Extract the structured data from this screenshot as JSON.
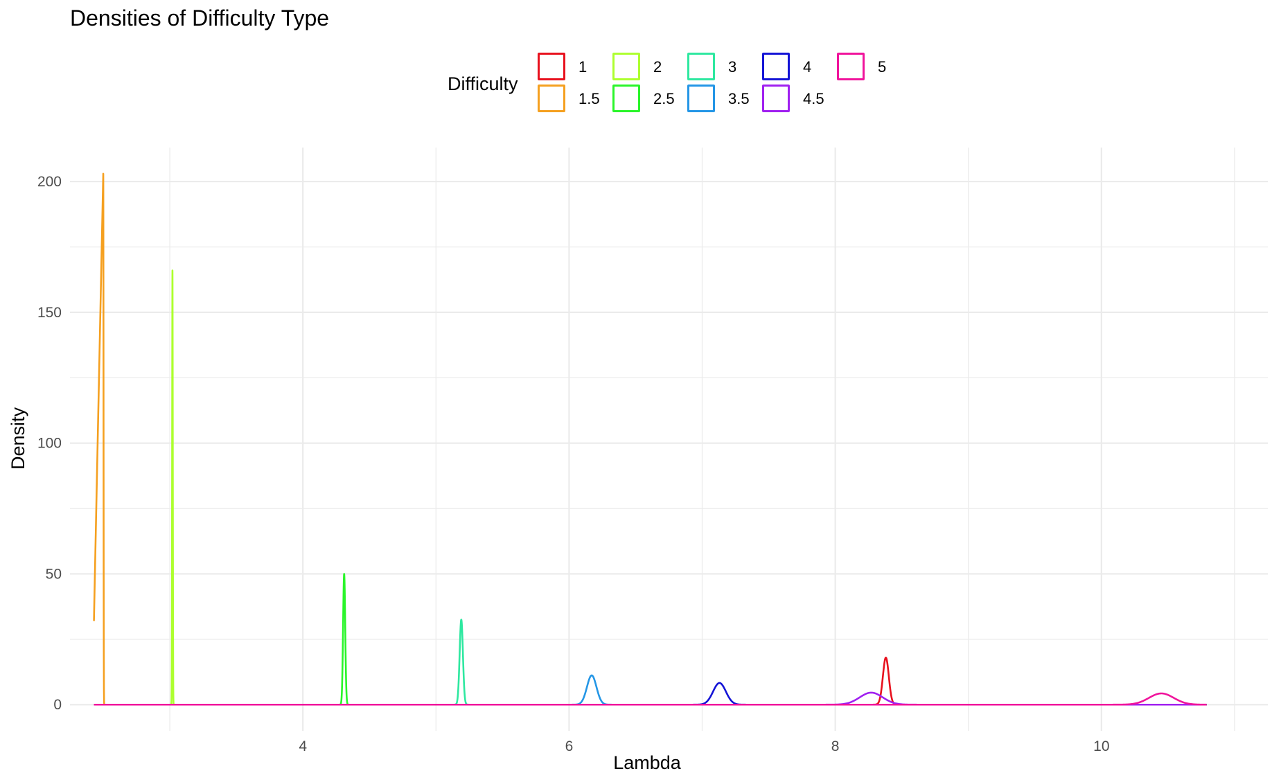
{
  "chart_data": {
    "type": "line",
    "title": "Densities of Difficulty Type",
    "xlabel": "Lambda",
    "ylabel": "Density",
    "xlim": [
      2.25,
      11.25
    ],
    "ylim": [
      -10,
      213
    ],
    "x_ticks": [
      4,
      6,
      8,
      10
    ],
    "y_ticks": [
      0,
      50,
      100,
      150,
      200
    ],
    "grid": true,
    "legend": {
      "title": "Difficulty",
      "position": "top"
    },
    "x_range": [
      2.43,
      10.79
    ],
    "series": [
      {
        "name": "1",
        "color": "#E8111E",
        "peak_x": 8.38,
        "peak_y": 18
      },
      {
        "name": "1.5",
        "color": "#F5A020",
        "peak_x": 2.5,
        "peak_y": 203,
        "start_x": 2.43,
        "start_y": 32
      },
      {
        "name": "2",
        "color": "#ADFF2F",
        "peak_x": 3.02,
        "peak_y": 166
      },
      {
        "name": "2.5",
        "color": "#2AF52A",
        "peak_x": 4.31,
        "peak_y": 50
      },
      {
        "name": "3",
        "color": "#2EE8A0",
        "peak_x": 5.19,
        "peak_y": 32.5
      },
      {
        "name": "3.5",
        "color": "#2496E6",
        "peak_x": 6.17,
        "peak_y": 11.2
      },
      {
        "name": "4",
        "color": "#1414D6",
        "peak_x": 7.13,
        "peak_y": 8.3
      },
      {
        "name": "4.5",
        "color": "#A020F0",
        "peak_x": 8.27,
        "peak_y": 4.6
      },
      {
        "name": "5",
        "color": "#F0149C",
        "peak_x": 10.45,
        "peak_y": 4.3
      }
    ]
  }
}
